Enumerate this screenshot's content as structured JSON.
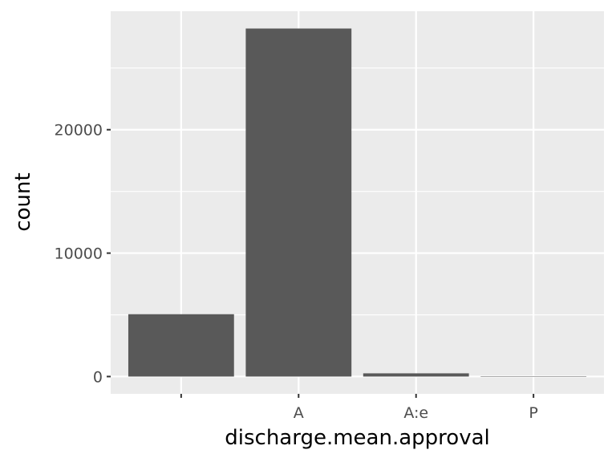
{
  "chart_data": {
    "type": "bar",
    "categories": [
      "",
      "A",
      "A:e",
      "P"
    ],
    "values": [
      5050,
      28200,
      260,
      8
    ],
    "xlabel": "discharge.mean.approval",
    "ylabel": "count",
    "ylim": [
      -1400,
      29600
    ],
    "yticks": [
      0,
      10000,
      20000
    ],
    "grid": true,
    "colors": {
      "panel": "#ebebeb",
      "grid_major": "#ffffff",
      "bar": "#595959",
      "tick": "#333333"
    }
  }
}
